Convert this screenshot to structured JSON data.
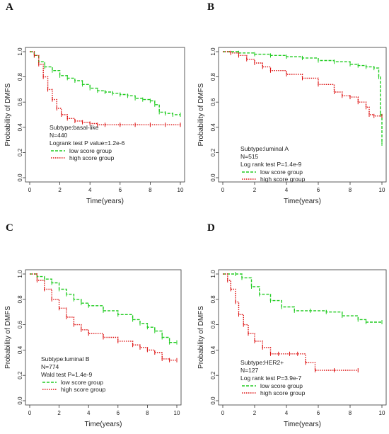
{
  "chart_data": [
    {
      "panel": "A",
      "type": "line",
      "xlabel": "Time(years)",
      "ylabel": "Probability of DMFS",
      "xlim": [
        0,
        10
      ],
      "ylim": [
        0,
        1
      ],
      "xticks": [
        "0",
        "2",
        "4",
        "6",
        "8",
        "10"
      ],
      "yticks": [
        "0.0",
        "0.2",
        "0.4",
        "0.6",
        "0.8",
        "1.0"
      ],
      "annotations": [
        "Subtype:basal-like",
        "N=440",
        "Logrank test P value=1.2e-6"
      ],
      "legend": [
        "low score group",
        "high score group"
      ],
      "series": [
        {
          "name": "low score group",
          "color": "#22cc22",
          "dash": "dashed",
          "x": [
            0,
            0.3,
            0.6,
            1.0,
            1.5,
            2.0,
            2.5,
            3.0,
            3.5,
            4.0,
            4.5,
            5.0,
            5.5,
            6.0,
            6.5,
            7.0,
            7.5,
            8.0,
            8.3,
            8.6,
            9.0,
            9.5,
            10.0
          ],
          "y": [
            1.0,
            0.97,
            0.92,
            0.88,
            0.85,
            0.81,
            0.79,
            0.77,
            0.74,
            0.71,
            0.69,
            0.68,
            0.67,
            0.66,
            0.65,
            0.63,
            0.62,
            0.61,
            0.58,
            0.52,
            0.51,
            0.5,
            0.5
          ]
        },
        {
          "name": "high score group",
          "color": "#dd1111",
          "dash": "dotted",
          "x": [
            0,
            0.3,
            0.6,
            0.9,
            1.2,
            1.5,
            1.8,
            2.1,
            2.5,
            3.0,
            3.5,
            4.0,
            4.5,
            5.0,
            6.0,
            7.0,
            8.0,
            9.0,
            10.0
          ],
          "y": [
            1.0,
            0.97,
            0.9,
            0.8,
            0.7,
            0.62,
            0.55,
            0.5,
            0.47,
            0.45,
            0.44,
            0.43,
            0.42,
            0.42,
            0.42,
            0.42,
            0.42,
            0.42,
            0.42
          ]
        }
      ]
    },
    {
      "panel": "B",
      "type": "line",
      "xlabel": "Time(years)",
      "ylabel": "Probability of DMFS",
      "xlim": [
        0,
        10
      ],
      "ylim": [
        0,
        1
      ],
      "xticks": [
        "0",
        "2",
        "4",
        "6",
        "8",
        "10"
      ],
      "yticks": [
        "0.0",
        "0.2",
        "0.4",
        "0.6",
        "0.8",
        "1.0"
      ],
      "annotations": [
        "Subtype:luminal A",
        "N=515",
        "Log rank test P=1.4e-9"
      ],
      "legend": [
        "low score group",
        "high score group"
      ],
      "series": [
        {
          "name": "low score group",
          "color": "#22cc22",
          "dash": "dashed",
          "x": [
            0,
            1.0,
            2.0,
            3.0,
            4.0,
            5.0,
            6.0,
            7.0,
            8.0,
            8.5,
            9.0,
            9.5,
            9.8,
            9.9,
            10.0
          ],
          "y": [
            1.0,
            0.99,
            0.98,
            0.97,
            0.96,
            0.95,
            0.93,
            0.92,
            0.9,
            0.89,
            0.88,
            0.87,
            0.8,
            0.5,
            0.27
          ]
        },
        {
          "name": "high score group",
          "color": "#dd1111",
          "dash": "dotted",
          "x": [
            0,
            0.5,
            1.0,
            1.5,
            2.0,
            2.5,
            3.0,
            4.0,
            5.0,
            6.0,
            7.0,
            7.5,
            8.0,
            8.5,
            9.0,
            9.2,
            9.5,
            10.0
          ],
          "y": [
            1.0,
            0.99,
            0.97,
            0.94,
            0.91,
            0.88,
            0.85,
            0.82,
            0.79,
            0.74,
            0.68,
            0.65,
            0.64,
            0.6,
            0.56,
            0.5,
            0.49,
            0.49
          ]
        }
      ]
    },
    {
      "panel": "C",
      "type": "line",
      "xlabel": "Time(years)",
      "ylabel": "Probability of DMFS",
      "xlim": [
        0,
        10
      ],
      "ylim": [
        0,
        1
      ],
      "xticks": [
        "0",
        "2",
        "4",
        "6",
        "8",
        "10"
      ],
      "yticks": [
        "0.0",
        "0.2",
        "0.4",
        "0.6",
        "0.8",
        "1.0"
      ],
      "annotations": [
        "Subtype:luminal B",
        "N=774",
        "Wald test P=1.4e-9"
      ],
      "legend": [
        "low score group",
        "high score group"
      ],
      "series": [
        {
          "name": "low score group",
          "color": "#22cc22",
          "dash": "dashed",
          "x": [
            0,
            0.5,
            1.0,
            1.5,
            2.0,
            2.5,
            3.0,
            3.5,
            4.0,
            5.0,
            6.0,
            7.0,
            7.5,
            8.0,
            8.5,
            9.0,
            9.5,
            10.0
          ],
          "y": [
            1.0,
            0.98,
            0.96,
            0.93,
            0.88,
            0.84,
            0.8,
            0.77,
            0.75,
            0.71,
            0.68,
            0.64,
            0.61,
            0.58,
            0.55,
            0.5,
            0.46,
            0.46
          ]
        },
        {
          "name": "high score group",
          "color": "#dd1111",
          "dash": "dotted",
          "x": [
            0,
            0.5,
            1.0,
            1.5,
            2.0,
            2.5,
            3.0,
            3.5,
            4.0,
            5.0,
            6.0,
            7.0,
            7.5,
            8.0,
            8.5,
            9.0,
            9.5,
            10.0
          ],
          "y": [
            1.0,
            0.95,
            0.88,
            0.8,
            0.73,
            0.66,
            0.6,
            0.56,
            0.53,
            0.5,
            0.47,
            0.44,
            0.42,
            0.4,
            0.38,
            0.33,
            0.32,
            0.32
          ]
        }
      ]
    },
    {
      "panel": "D",
      "type": "line",
      "xlabel": "Time(years)",
      "ylabel": "Probability of DMFS",
      "xlim": [
        0,
        10
      ],
      "ylim": [
        0,
        1
      ],
      "xticks": [
        "0",
        "2",
        "4",
        "6",
        "8",
        "10"
      ],
      "yticks": [
        "0.0",
        "0.2",
        "0.4",
        "0.6",
        "0.8",
        "1.0"
      ],
      "annotations": [
        "Subtype:HER2+",
        "N=127",
        "Log rank test P=3.9e-7"
      ],
      "legend": [
        "low score group",
        "high score group"
      ],
      "series": [
        {
          "name": "low score group",
          "color": "#22cc22",
          "dash": "dashed",
          "x": [
            0,
            0.8,
            1.2,
            1.8,
            2.3,
            3.0,
            3.7,
            4.5,
            5.5,
            6.5,
            7.5,
            8.5,
            9.0,
            10.0
          ],
          "y": [
            1.0,
            1.0,
            0.97,
            0.9,
            0.84,
            0.79,
            0.74,
            0.71,
            0.71,
            0.7,
            0.67,
            0.64,
            0.62,
            0.62
          ]
        },
        {
          "name": "high score group",
          "color": "#dd1111",
          "dash": "dotted",
          "x": [
            0,
            0.3,
            0.5,
            0.8,
            1.0,
            1.3,
            1.6,
            2.0,
            2.5,
            3.0,
            3.5,
            4.2,
            4.7,
            5.2,
            5.8,
            7.0,
            8.5
          ],
          "y": [
            1.0,
            0.95,
            0.88,
            0.78,
            0.68,
            0.6,
            0.53,
            0.47,
            0.42,
            0.37,
            0.37,
            0.37,
            0.37,
            0.3,
            0.24,
            0.24,
            0.24
          ]
        }
      ]
    }
  ]
}
